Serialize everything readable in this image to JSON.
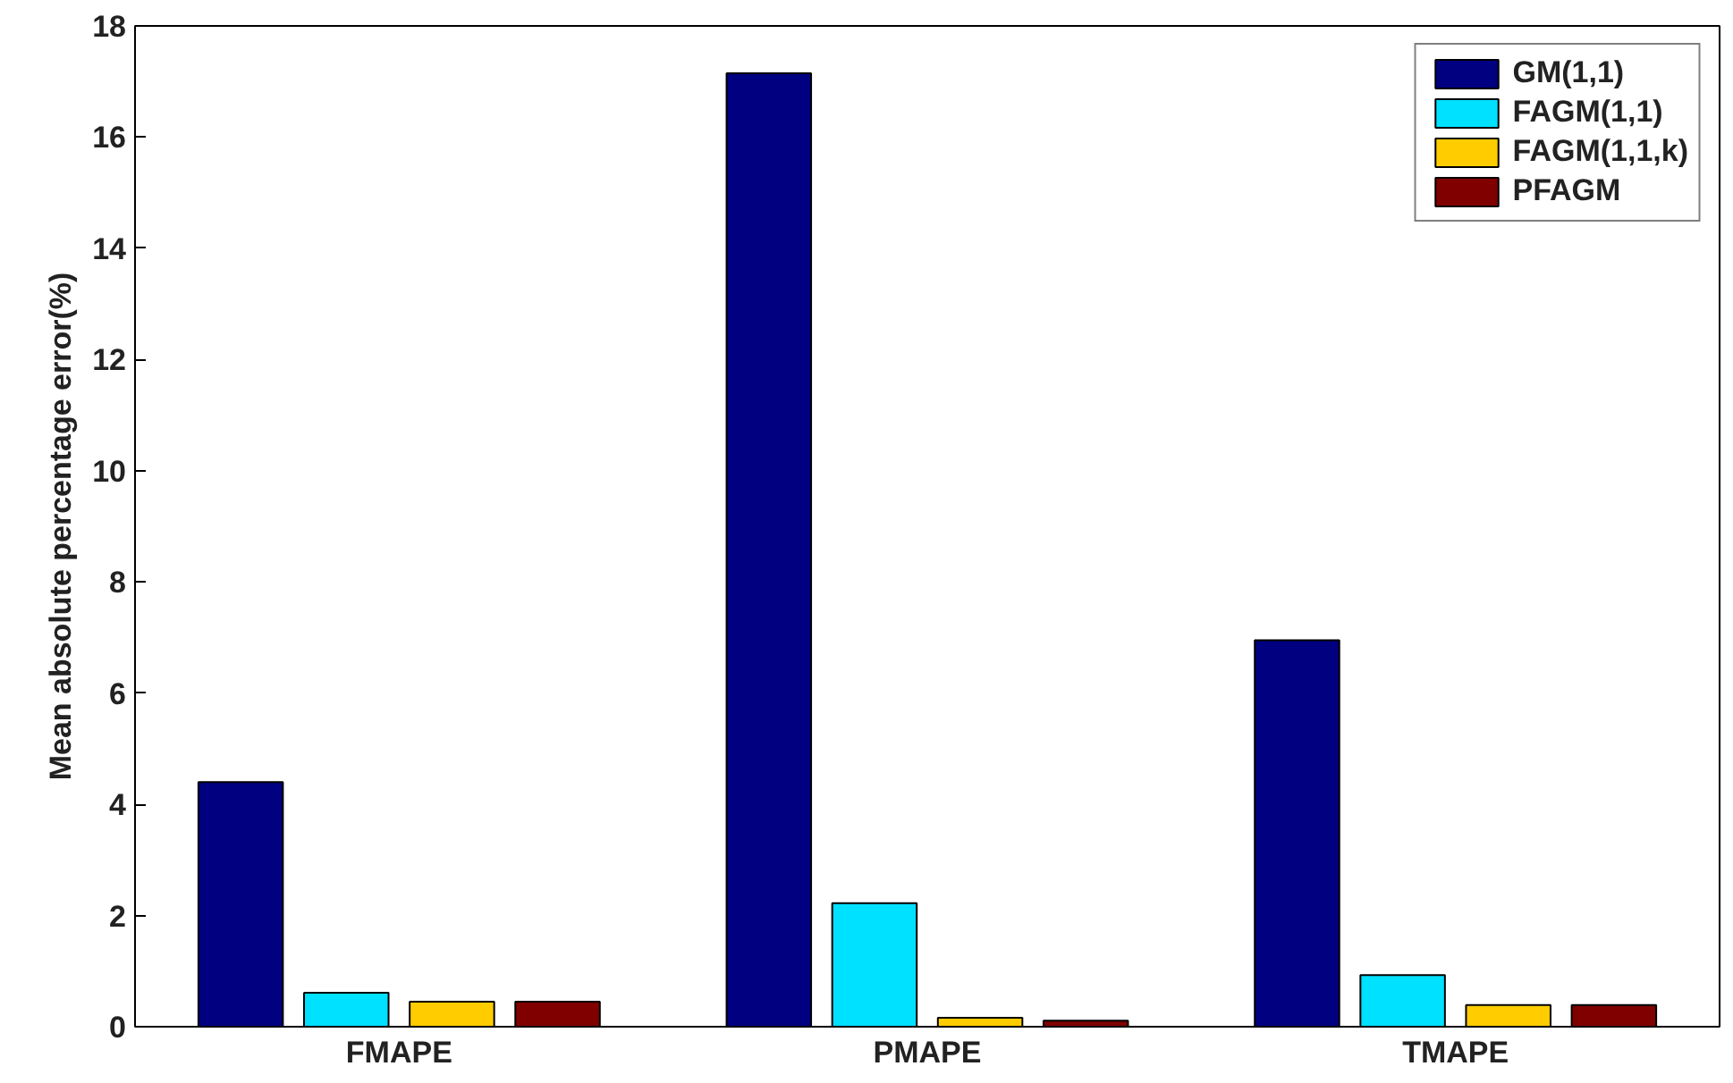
{
  "chart_data": {
    "type": "bar",
    "ylabel": "Mean absolute percentage error(%)",
    "categories": [
      "FMAPE",
      "PMAPE",
      "TMAPE"
    ],
    "series": [
      {
        "name": "GM(1,1)",
        "color": "#000080",
        "values": [
          4.4,
          17.15,
          6.95
        ]
      },
      {
        "name": "FAGM(1,1)",
        "color": "#00e0ff",
        "values": [
          0.61,
          2.22,
          0.93
        ]
      },
      {
        "name": "FAGM(1,1,k)",
        "color": "#ffcc00",
        "values": [
          0.45,
          0.16,
          0.39
        ]
      },
      {
        "name": "PFAGM",
        "color": "#800000",
        "values": [
          0.45,
          0.11,
          0.39
        ]
      }
    ],
    "ylim": [
      0,
      18
    ],
    "yticks": [
      0,
      2,
      4,
      6,
      8,
      10,
      12,
      14,
      16,
      18
    ],
    "grid": false,
    "legend": "top right"
  }
}
